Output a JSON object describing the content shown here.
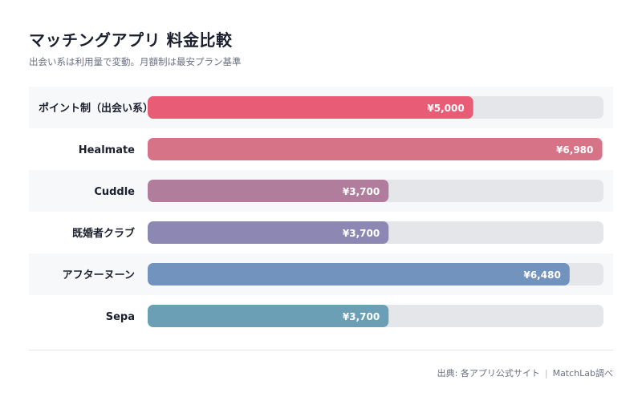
{
  "title": "マッチングアプリ 料金比較",
  "subtitle": "出会い系は利用量で変動。月額制は最安プラン基準",
  "source": {
    "label": "出典: 各アプリ公式サイト",
    "separator": "|",
    "author": "MatchLab調べ"
  },
  "chart_data": {
    "type": "bar",
    "orientation": "horizontal",
    "title": "マッチングアプリ 料金比較",
    "subtitle": "出会い系は利用量で変動。月額制は最安プラン基準",
    "xlabel": "",
    "ylabel": "",
    "xlim": [
      0,
      7000
    ],
    "grid": false,
    "legend": "none",
    "categories": [
      "ポイント制（出会い系）",
      "Healmate",
      "Cuddle",
      "既婚者クラブ",
      "アフターヌーン",
      "Sepa"
    ],
    "values": [
      5000,
      6980,
      3700,
      3700,
      6480,
      3700
    ],
    "value_labels": [
      "¥5,000",
      "¥6,980",
      "¥3,700",
      "¥3,700",
      "¥6,480",
      "¥3,700"
    ],
    "colors": [
      "#e85d75",
      "#d67387",
      "#b07d9d",
      "#8c88b3",
      "#7393bf",
      "#6a9fb5"
    ],
    "track_color": "#e5e6ea",
    "stripe_color": "#f7f8fa"
  }
}
